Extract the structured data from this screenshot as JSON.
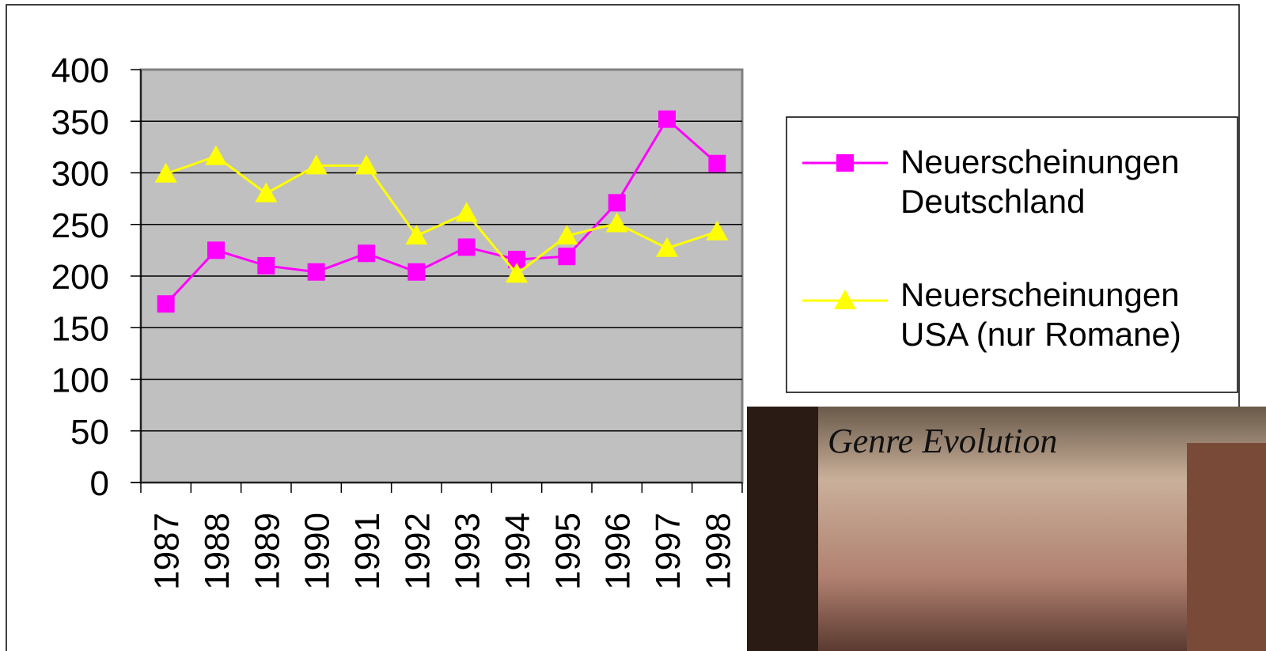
{
  "chart_data": {
    "type": "line",
    "categories": [
      "1987",
      "1988",
      "1989",
      "1990",
      "1991",
      "1992",
      "1993",
      "1994",
      "1995",
      "1996",
      "1997",
      "1998"
    ],
    "series": [
      {
        "name": "Neuerscheinungen Deutschland",
        "color": "#ff00ff",
        "marker": "square",
        "values": [
          173,
          225,
          210,
          204,
          222,
          204,
          228,
          216,
          219,
          271,
          352,
          309
        ]
      },
      {
        "name": "Neuerscheinungen USA (nur Romane)",
        "color": "#ffff00",
        "marker": "triangle",
        "values": [
          299,
          316,
          280,
          307,
          307,
          239,
          261,
          202,
          239,
          251,
          227,
          243
        ]
      }
    ],
    "ylim": [
      0,
      400
    ],
    "yticks": [
      0,
      50,
      100,
      150,
      200,
      250,
      300,
      350,
      400
    ],
    "grid": true,
    "legend": "right",
    "annotations": [
      "Genre Evolution"
    ]
  }
}
